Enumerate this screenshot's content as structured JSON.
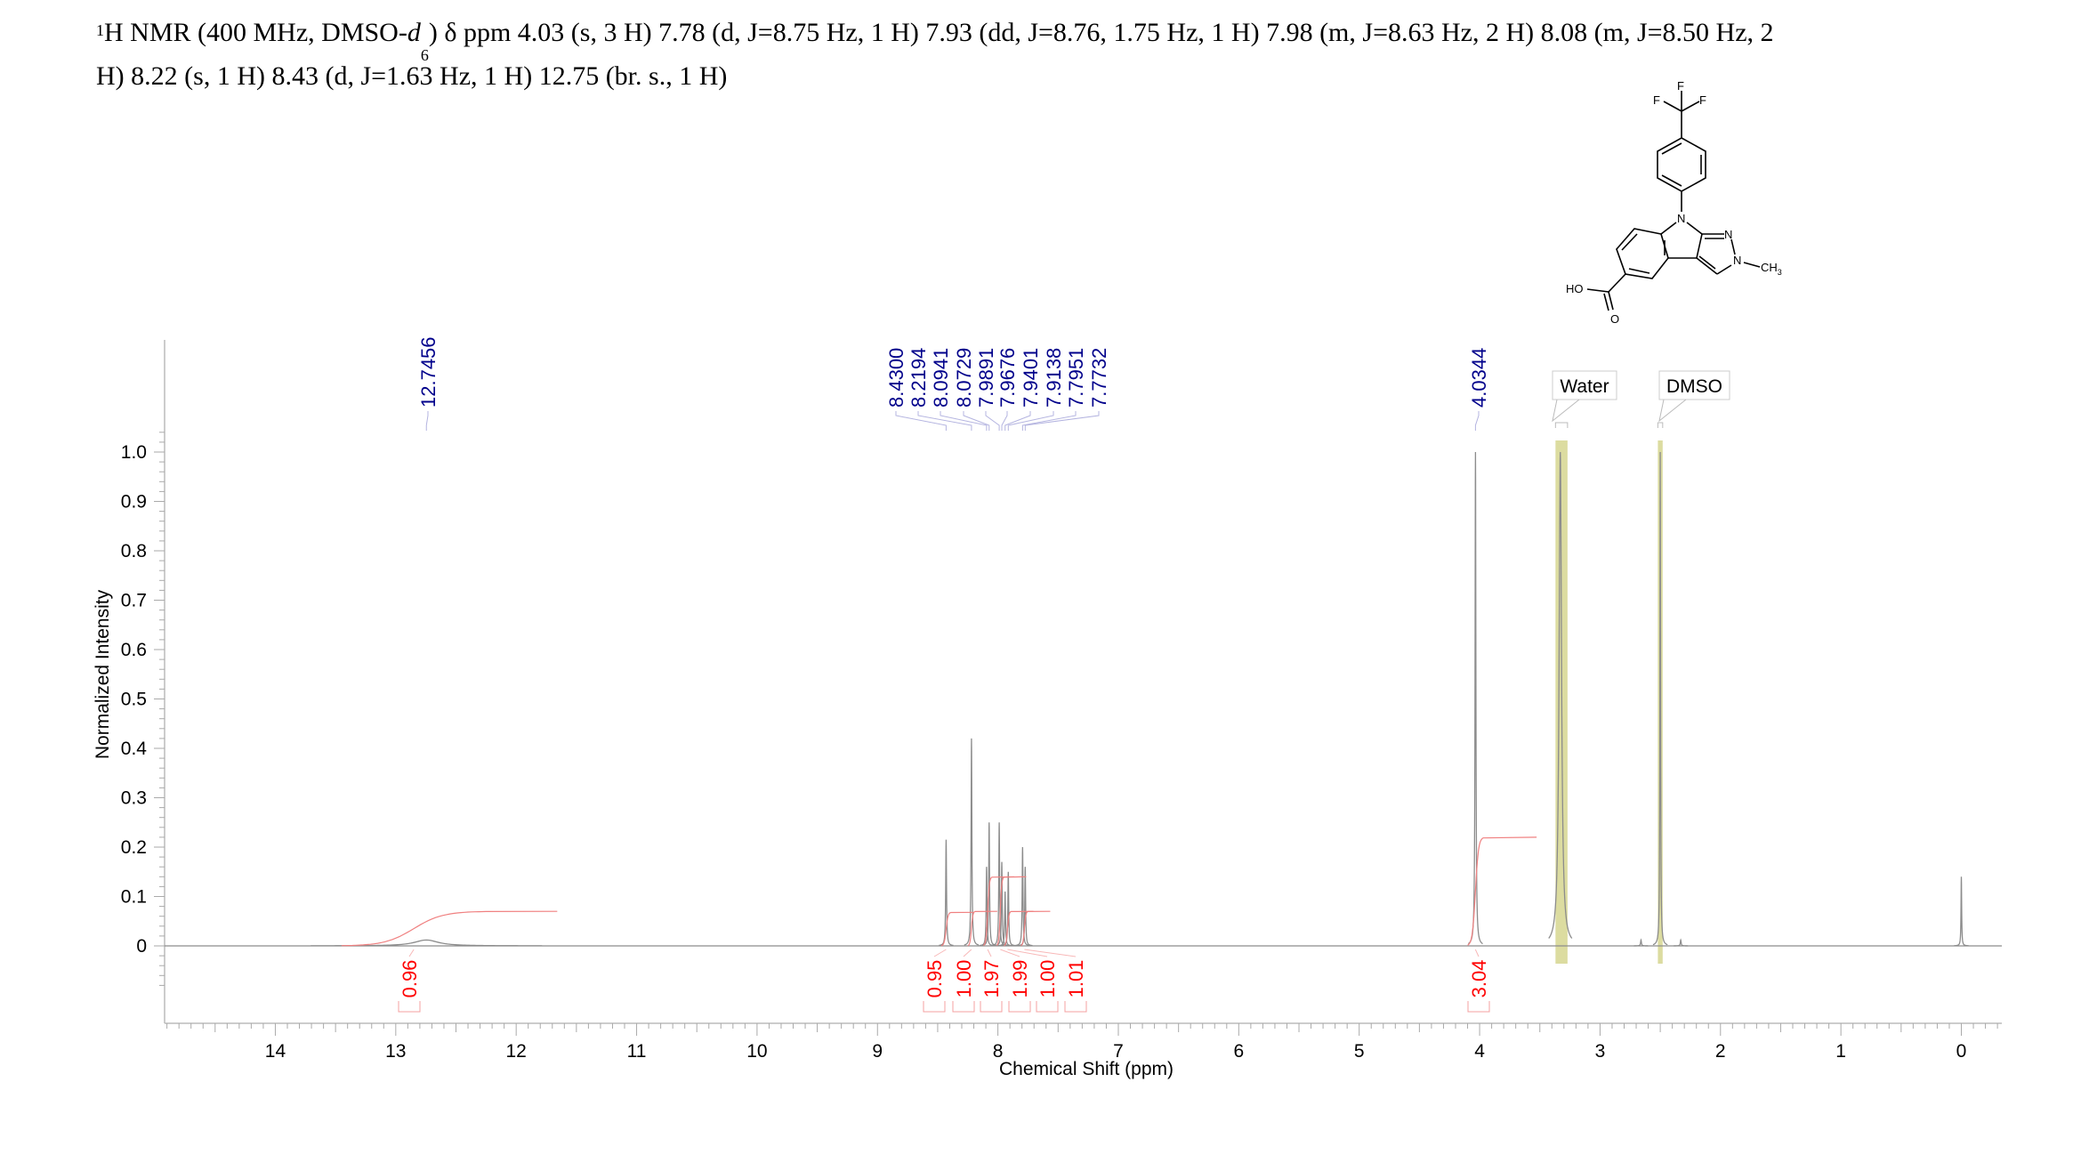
{
  "header": {
    "nmr_prefix": "1",
    "line1_a": "H NMR (400 MHz, DMSO-",
    "solvent_d": "d",
    "solvent_sub": "6",
    "line1_b": ") δ ppm 4.03 (s, 3 H) 7.78 (d, J=8.75 Hz, 1 H) 7.93 (dd, J=8.76, 1.75 Hz, 1 H) 7.98 (m, J=8.63 Hz, 2 H) 8.08 (m, J=8.50 Hz, 2",
    "line2": "H) 8.22 (s, 1 H) 8.43 (d, J=1.63 Hz, 1 H) 12.75 (br. s., 1 H)"
  },
  "molecule": {
    "atoms": {
      "F1": "F",
      "F2": "F",
      "F3": "F",
      "N9": "N",
      "N1": "N",
      "N2": "N",
      "CH3": "CH",
      "CH3_sub": "3",
      "OH": "HO",
      "O": "O"
    }
  },
  "chart_data": {
    "type": "line",
    "title": "",
    "xlabel": "Chemical Shift (ppm)",
    "ylabel": "Normalized Intensity",
    "xlim": [
      14.92,
      -0.34
    ],
    "ylim": [
      0,
      1.0
    ],
    "x_ticks": [
      "14",
      "13",
      "12",
      "11",
      "10",
      "9",
      "8",
      "7",
      "6",
      "5",
      "4",
      "3",
      "2",
      "1",
      "0"
    ],
    "y_ticks": [
      "0",
      "0.1",
      "0.2",
      "0.3",
      "0.4",
      "0.5",
      "0.6",
      "0.7",
      "0.8",
      "0.9",
      "1.0"
    ],
    "peaks": [
      {
        "ppm": 12.7456,
        "height": 0.012,
        "width": 0.12
      },
      {
        "ppm": 8.43,
        "height": 0.215,
        "width": 0.004
      },
      {
        "ppm": 8.2194,
        "height": 0.42,
        "width": 0.004
      },
      {
        "ppm": 8.0941,
        "height": 0.16,
        "width": 0.004
      },
      {
        "ppm": 8.0729,
        "height": 0.25,
        "width": 0.004
      },
      {
        "ppm": 7.9891,
        "height": 0.25,
        "width": 0.004
      },
      {
        "ppm": 7.9676,
        "height": 0.17,
        "width": 0.004
      },
      {
        "ppm": 7.9401,
        "height": 0.11,
        "width": 0.004
      },
      {
        "ppm": 7.9138,
        "height": 0.15,
        "width": 0.004
      },
      {
        "ppm": 7.7951,
        "height": 0.2,
        "width": 0.004
      },
      {
        "ppm": 7.7732,
        "height": 0.16,
        "width": 0.004
      },
      {
        "ppm": 4.0344,
        "height": 1.0,
        "width": 0.004
      },
      {
        "ppm": 3.33,
        "height": 1.0,
        "width": 0.012
      },
      {
        "ppm": 2.5,
        "height": 1.0,
        "width": 0.003
      },
      {
        "ppm": 2.66,
        "height": 0.012,
        "width": 0.004
      },
      {
        "ppm": 2.33,
        "height": 0.012,
        "width": 0.004
      },
      {
        "ppm": 0.0,
        "height": 0.14,
        "width": 0.003
      }
    ],
    "peak_labels": [
      "12.7456",
      "8.4300",
      "8.2194",
      "8.0941",
      "8.0729",
      "7.9891",
      "7.9676",
      "7.9401",
      "7.9138",
      "7.7951",
      "7.7732",
      "4.0344"
    ],
    "peak_label_ppm": [
      12.7456,
      8.43,
      8.2194,
      8.0941,
      8.0729,
      7.9891,
      7.9676,
      7.9401,
      7.9138,
      7.7951,
      7.7732,
      4.0344
    ],
    "integrals": [
      {
        "value": "0.96",
        "from": 13.45,
        "to": 12.25,
        "level": 0.07
      },
      {
        "value": "0.95",
        "from": 8.47,
        "to": 8.39,
        "level": 0.068
      },
      {
        "value": "1.00",
        "from": 8.25,
        "to": 8.19,
        "level": 0.07
      },
      {
        "value": "1.97",
        "from": 8.12,
        "to": 8.05,
        "level": 0.14
      },
      {
        "value": "1.99",
        "from": 8.01,
        "to": 7.95,
        "level": 0.14
      },
      {
        "value": "1.00",
        "from": 7.95,
        "to": 7.89,
        "level": 0.07
      },
      {
        "value": "1.01",
        "from": 7.81,
        "to": 7.75,
        "level": 0.07
      },
      {
        "value": "3.04",
        "from": 4.1,
        "to": 3.97,
        "level": 0.22
      }
    ],
    "solvent_regions": [
      {
        "label": "Water",
        "from": 3.37,
        "to": 3.27
      },
      {
        "label": "DMSO",
        "from": 2.52,
        "to": 2.48
      }
    ],
    "colors": {
      "spectrum": "#8c8c8c",
      "integral": "#ff0000",
      "peak_label": "#00008b",
      "solvent_band": "#dcdca0"
    }
  }
}
